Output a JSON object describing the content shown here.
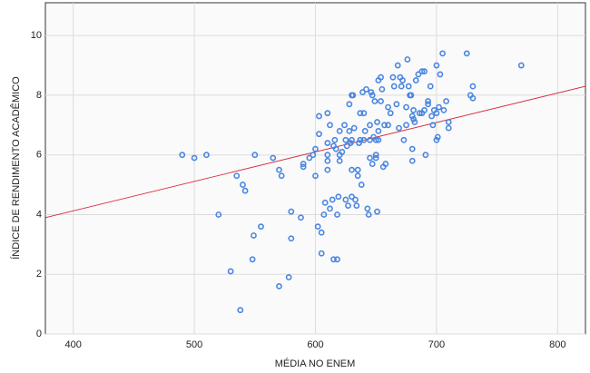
{
  "chart_data": {
    "type": "scatter",
    "x_label": "MÉDIA NO ENEM",
    "y_label": "ÍNDICE DE RENDIMENTO ACADÊMICO",
    "x": [
      490,
      500,
      510,
      520,
      530,
      535,
      538,
      540,
      542,
      548,
      549,
      550,
      555,
      565,
      570,
      570,
      572,
      578,
      580,
      580,
      588,
      590,
      590,
      595,
      598,
      600,
      600,
      602,
      603,
      603,
      605,
      605,
      607,
      608,
      610,
      610,
      610,
      610,
      610,
      612,
      612,
      614,
      615,
      615,
      616,
      617,
      618,
      618,
      619,
      620,
      620,
      620,
      622,
      624,
      625,
      625,
      626,
      627,
      628,
      628,
      629,
      630,
      630,
      630,
      630,
      631,
      632,
      633,
      634,
      635,
      635,
      636,
      637,
      637,
      638,
      639,
      640,
      640,
      641,
      642,
      643,
      644,
      645,
      645,
      645,
      646,
      647,
      647,
      648,
      649,
      650,
      650,
      650,
      651,
      651,
      652,
      652,
      652,
      654,
      654,
      655,
      656,
      657,
      658,
      660,
      660,
      662,
      664,
      665,
      667,
      668,
      669,
      670,
      671,
      672,
      673,
      675,
      675,
      676,
      677,
      678,
      679,
      680,
      680,
      680,
      681,
      681,
      682,
      683,
      685,
      686,
      688,
      688,
      690,
      690,
      691,
      693,
      693,
      695,
      696,
      697,
      698,
      700,
      700,
      700,
      701,
      702,
      703,
      705,
      706,
      708,
      710,
      710,
      725,
      728,
      730,
      730,
      770
    ],
    "values": [
      6.0,
      5.9,
      6.0,
      4.0,
      2.1,
      5.3,
      0.8,
      5.0,
      4.8,
      2.5,
      3.3,
      6.0,
      3.6,
      5.9,
      1.6,
      5.5,
      5.3,
      1.9,
      4.1,
      3.2,
      3.9,
      5.7,
      5.6,
      5.9,
      6.0,
      5.3,
      6.2,
      3.6,
      7.3,
      6.7,
      3.4,
      2.7,
      4.0,
      4.4,
      7.4,
      6.4,
      6.0,
      5.8,
      5.5,
      4.2,
      7.0,
      4.5,
      2.5,
      6.3,
      6.5,
      6.2,
      2.5,
      4.0,
      4.6,
      5.8,
      6.8,
      6.0,
      6.1,
      7.0,
      4.5,
      6.5,
      6.3,
      4.3,
      7.7,
      6.8,
      6.4,
      8.0,
      6.5,
      4.6,
      5.5,
      8.0,
      6.9,
      4.5,
      4.3,
      5.5,
      5.3,
      6.4,
      7.4,
      6.5,
      5.0,
      8.1,
      7.4,
      6.5,
      6.8,
      8.2,
      4.2,
      4.0,
      6.5,
      7.0,
      5.9,
      8.1,
      8.0,
      5.7,
      6.6,
      7.8,
      6.5,
      6.0,
      5.9,
      7.1,
      4.1,
      8.5,
      6.8,
      6.5,
      7.8,
      8.6,
      8.2,
      5.6,
      7.0,
      5.7,
      7.6,
      7.0,
      7.4,
      8.6,
      8.3,
      7.7,
      9.0,
      6.9,
      8.6,
      8.3,
      8.5,
      6.5,
      7.6,
      7.0,
      9.2,
      8.3,
      8.0,
      8.0,
      7.3,
      6.2,
      5.8,
      7.2,
      7.5,
      7.1,
      8.5,
      8.7,
      7.4,
      7.4,
      8.8,
      7.5,
      8.8,
      6.0,
      7.8,
      7.7,
      8.3,
      7.3,
      7.0,
      7.5,
      7.4,
      6.5,
      9.0,
      6.6,
      7.6,
      8.7,
      9.4,
      7.5,
      7.8,
      7.1,
      6.9,
      9.4,
      8.0,
      7.9,
      8.3,
      9.0
    ],
    "color": "#4a86e0",
    "fit_line": {
      "x": [
        377,
        823
      ],
      "y": [
        3.9,
        8.3
      ],
      "color": "#d62a3a"
    },
    "xlim": [
      377,
      823
    ],
    "ylim": [
      0,
      11.1
    ],
    "xticks": [
      400,
      500,
      600,
      700,
      800
    ],
    "yticks": [
      0,
      2,
      4,
      6,
      8,
      10
    ],
    "grid": true
  }
}
